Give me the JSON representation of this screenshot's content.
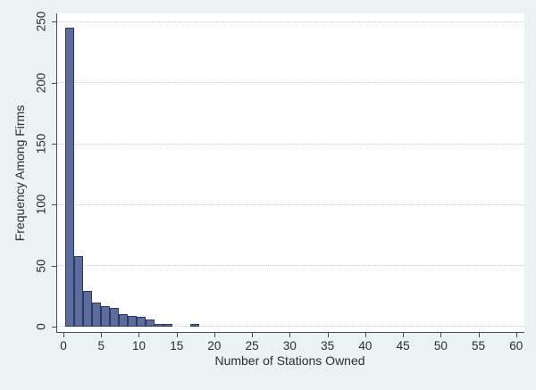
{
  "chart_data": {
    "type": "bar",
    "subtype": "histogram",
    "title": "",
    "xlabel": "Number of Stations Owned",
    "ylabel": "Frequency Among Firms",
    "x_ticks": [
      0,
      5,
      10,
      15,
      20,
      25,
      30,
      35,
      40,
      45,
      50,
      55,
      60
    ],
    "y_ticks": [
      0,
      50,
      100,
      150,
      200,
      250
    ],
    "xlim": [
      -0.83,
      61.09
    ],
    "ylim": [
      -4.4,
      256.9
    ],
    "grid": "horizontal-dotted",
    "legend": "none",
    "bin_width": 1.19,
    "bars": [
      {
        "x0": 0.24,
        "x1": 1.42,
        "freq": 245
      },
      {
        "x0": 1.42,
        "x1": 2.61,
        "freq": 58
      },
      {
        "x0": 2.61,
        "x1": 3.8,
        "freq": 29
      },
      {
        "x0": 3.8,
        "x1": 4.98,
        "freq": 20
      },
      {
        "x0": 4.98,
        "x1": 6.17,
        "freq": 17
      },
      {
        "x0": 6.17,
        "x1": 7.35,
        "freq": 15
      },
      {
        "x0": 7.35,
        "x1": 8.54,
        "freq": 10
      },
      {
        "x0": 8.54,
        "x1": 9.73,
        "freq": 9
      },
      {
        "x0": 9.73,
        "x1": 10.91,
        "freq": 8
      },
      {
        "x0": 10.91,
        "x1": 12.1,
        "freq": 6
      },
      {
        "x0": 12.1,
        "x1": 13.29,
        "freq": 2
      },
      {
        "x0": 13.29,
        "x1": 14.47,
        "freq": 2
      },
      {
        "x0": 16.85,
        "x1": 18.03,
        "freq": 2
      }
    ],
    "colors": {
      "background": "#eaf2f3",
      "plot_background": "#ffffff",
      "bar_fill": "#5c6d9d",
      "bar_outline": "#2b3a64",
      "grid": "#c4d2de",
      "axis": "#4a4a4a",
      "text": "#2e2e2e"
    }
  }
}
